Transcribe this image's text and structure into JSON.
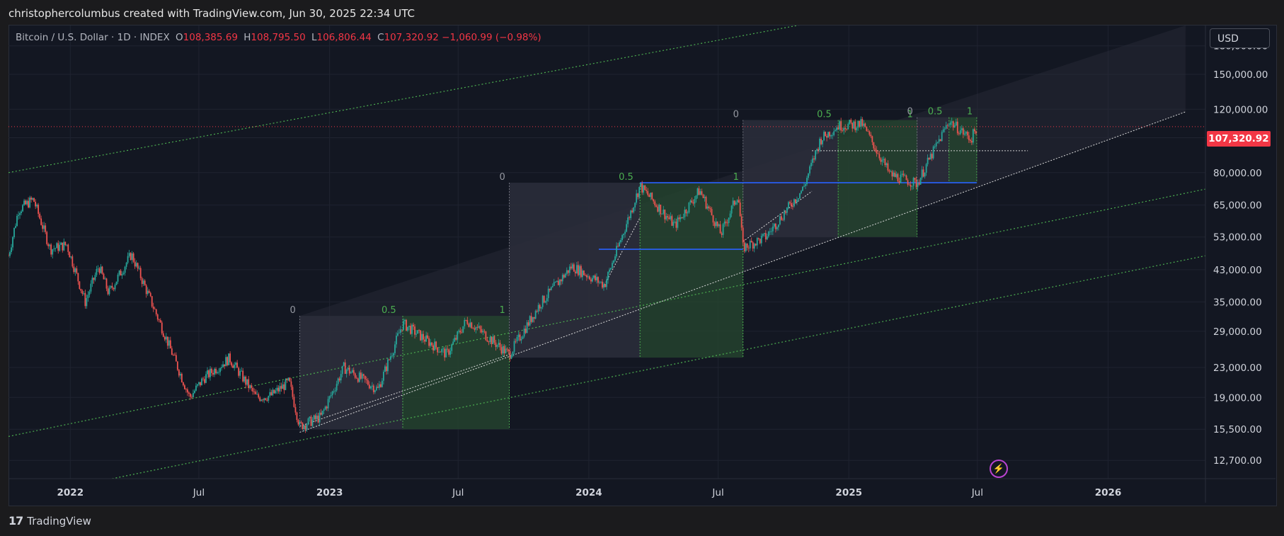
{
  "header": {
    "attribution": "christophercolumbus created with TradingView.com, Jun 30, 2025 22:34 UTC"
  },
  "legend": {
    "symbol": "Bitcoin / U.S. Dollar · 1D · INDEX",
    "open_label": "O",
    "open": "108,385.69",
    "high_label": "H",
    "high": "108,795.50",
    "low_label": "L",
    "low": "106,806.44",
    "close_label": "C",
    "close": "107,320.92",
    "change": "−1,060.99 (−0.98%)"
  },
  "currency_button": "USD",
  "last_price_badge": "107,320.92",
  "footer": {
    "brand": "TradingView"
  },
  "colors": {
    "background": "#131722",
    "up": "#26a69a",
    "down": "#ef5350",
    "fib_zone_fill": "#2b2e3b",
    "fib_green": "#26452f",
    "channel_green": "#4caf50",
    "blue_line": "#2962ff",
    "price_line": "#f23645"
  },
  "icons": {
    "alert": "lightning-icon",
    "logo": "tradingview-logo-icon"
  },
  "chart_data": {
    "type": "candlestick",
    "log_scale": true,
    "y_axis": {
      "ticks": [
        12700,
        15500,
        19000,
        23000,
        29000,
        35000,
        43000,
        53000,
        65000,
        80000,
        100000,
        120000,
        150000,
        180000
      ],
      "tick_labels": [
        "12,700.00",
        "15,500.00",
        "19,000.00",
        "23,000.00",
        "29,000.00",
        "35,000.00",
        "43,000.00",
        "53,000.00",
        "65,000.00",
        "80,000.00",
        "100,000.00",
        "120,000.00",
        "150,000.00",
        "180,000.00"
      ],
      "range": [
        11300,
        205000
      ]
    },
    "x_axis": {
      "tick_labels": [
        "2022",
        "Jul",
        "2023",
        "Jul",
        "2024",
        "Jul",
        "2025",
        "Jul",
        "2026"
      ],
      "tick_dates": [
        "2022-01-01",
        "2022-07-01",
        "2023-01-01",
        "2023-07-01",
        "2024-01-01",
        "2024-07-01",
        "2025-01-01",
        "2025-07-01",
        "2026-01-01"
      ],
      "range": [
        "2021-10-06",
        "2026-05-18"
      ]
    },
    "price_path": [
      [
        "2021-10-06",
        47000
      ],
      [
        "2021-10-20",
        63000
      ],
      [
        "2021-11-10",
        67500
      ],
      [
        "2021-12-04",
        49000
      ],
      [
        "2021-12-27",
        50500
      ],
      [
        "2022-01-22",
        35000
      ],
      [
        "2022-02-10",
        44000
      ],
      [
        "2022-02-24",
        37000
      ],
      [
        "2022-03-28",
        47500
      ],
      [
        "2022-05-09",
        30000
      ],
      [
        "2022-06-18",
        19000
      ],
      [
        "2022-07-08",
        21500
      ],
      [
        "2022-08-13",
        24400
      ],
      [
        "2022-09-20",
        19000
      ],
      [
        "2022-10-10",
        19200
      ],
      [
        "2022-11-05",
        21000
      ],
      [
        "2022-11-20",
        15800
      ],
      [
        "2022-12-20",
        16800
      ],
      [
        "2023-01-21",
        23000
      ],
      [
        "2023-03-10",
        20000
      ],
      [
        "2023-04-14",
        30500
      ],
      [
        "2023-06-15",
        25000
      ],
      [
        "2023-07-13",
        31200
      ],
      [
        "2023-09-11",
        25000
      ],
      [
        "2023-10-24",
        34500
      ],
      [
        "2023-12-08",
        44000
      ],
      [
        "2024-01-23",
        39000
      ],
      [
        "2024-03-13",
        73500
      ],
      [
        "2024-05-01",
        57000
      ],
      [
        "2024-06-05",
        71500
      ],
      [
        "2024-07-05",
        54000
      ],
      [
        "2024-07-29",
        70000
      ],
      [
        "2024-08-05",
        49500
      ],
      [
        "2024-09-06",
        53000
      ],
      [
        "2024-10-29",
        72500
      ],
      [
        "2024-11-22",
        99000
      ],
      [
        "2024-12-17",
        108000
      ],
      [
        "2025-01-20",
        109000
      ],
      [
        "2025-02-28",
        79000
      ],
      [
        "2025-04-07",
        74500
      ],
      [
        "2025-05-22",
        111500
      ],
      [
        "2025-06-22",
        99000
      ],
      [
        "2025-06-30",
        107320.92
      ]
    ],
    "last_price": 107320.92,
    "fib_zone_labels": [
      "0",
      "0.5",
      "1"
    ],
    "fib_zones": [
      {
        "start": "2022-11-20",
        "mid": "2023-04-14",
        "end": "2023-09-11",
        "top": 32000,
        "bottom": 15500
      },
      {
        "start": "2023-09-11",
        "mid": "2024-03-13",
        "end": "2024-08-05",
        "top": 75000,
        "bottom": 24500
      },
      {
        "start": "2024-08-05",
        "mid": "2024-12-17",
        "end": "2025-04-07",
        "top": 112000,
        "bottom": 53000
      },
      {
        "start": "2025-04-07",
        "mid": "2025-05-22",
        "end": "2025-06-30",
        "top": 114000,
        "bottom": 75000
      }
    ],
    "horizontal_levels": [
      {
        "price": 75000,
        "from": "2024-03-13",
        "to": "2025-06-30"
      },
      {
        "price": 49000,
        "from": "2024-01-15",
        "to": "2024-08-05"
      },
      {
        "price": 92000,
        "from": "2024-11-10",
        "to": "2025-09-10",
        "dotted": true
      }
    ],
    "trend_lines": [
      {
        "from": [
          "2022-11-20",
          15200
        ],
        "to": [
          "2026-04-20",
          118000
        ]
      },
      {
        "from": [
          "2022-11-20",
          15800
        ],
        "to": [
          "2023-09-11",
          25000
        ]
      },
      {
        "from": [
          "2024-01-23",
          39000
        ],
        "to": [
          "2024-03-13",
          60000
        ]
      },
      {
        "from": [
          "2024-08-05",
          51500
        ],
        "to": [
          "2024-11-10",
          71000
        ]
      }
    ],
    "channel_lines": [
      {
        "from": [
          "2021-10-06",
          80000
        ],
        "to": [
          "2025-03-05",
          230000
        ]
      },
      {
        "from": [
          "2021-10-06",
          14800
        ],
        "to": [
          "2026-05-18",
          72000
        ]
      },
      {
        "from": [
          "2022-03-01",
          11300
        ],
        "to": [
          "2026-05-18",
          47000
        ]
      }
    ]
  }
}
